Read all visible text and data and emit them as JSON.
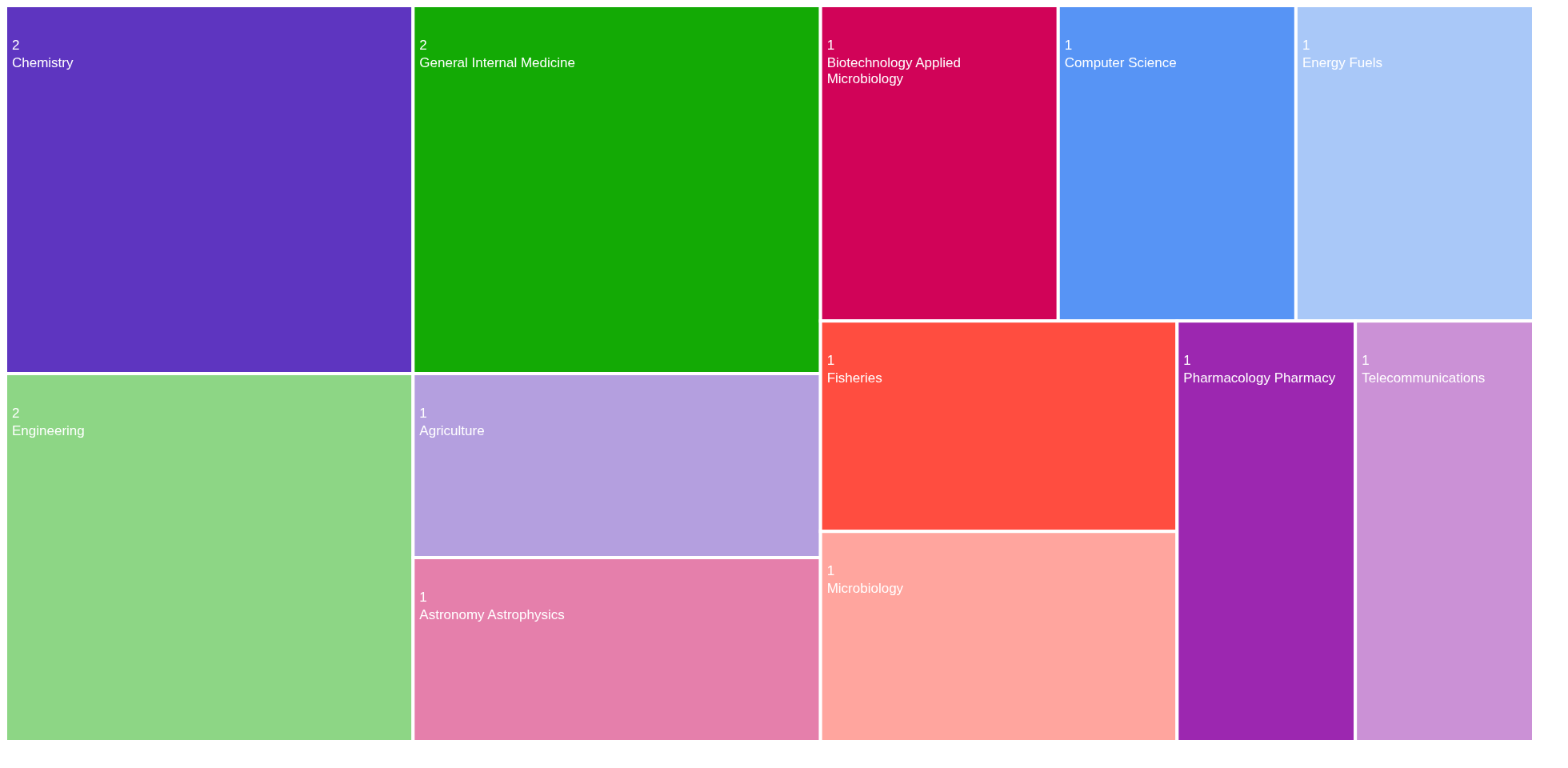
{
  "chart_data": {
    "type": "other",
    "data_labels": true,
    "categories": [
      "Chemistry",
      "Engineering",
      "General Internal Medicine",
      "Agriculture",
      "Astronomy Astrophysics",
      "Biotechnology Applied Microbiology",
      "Computer Science",
      "Energy Fuels",
      "Fisheries",
      "Microbiology",
      "Pharmacology Pharmacy",
      "Telecommunications"
    ],
    "values": [
      2,
      2,
      2,
      1,
      1,
      1,
      1,
      1,
      1,
      1,
      1,
      1
    ],
    "colors": [
      "#5e35c0",
      "#8dd685",
      "#13aa05",
      "#b49fdf",
      "#e57fab",
      "#d10358",
      "#5794f5",
      "#a9c8f8",
      "#ff4d40",
      "#ffa59e",
      "#9c27b0",
      "#cb91d6"
    ]
  }
}
